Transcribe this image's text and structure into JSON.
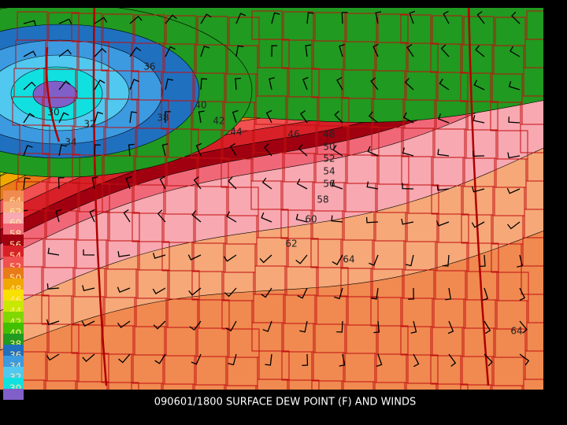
{
  "title": "090601/1800 SURFACE DEW POINT (F) AND WINDS",
  "legend": [
    {
      "label": "64",
      "color": "#f08a50"
    },
    {
      "label": "62",
      "color": "#f6a878"
    },
    {
      "label": "60",
      "color": "#f8a8b0"
    },
    {
      "label": "58",
      "color": "#f06878"
    },
    {
      "label": "56",
      "color": "#a00010"
    },
    {
      "label": "54",
      "color": "#d82028"
    },
    {
      "label": "52",
      "color": "#f05050"
    },
    {
      "label": "50",
      "color": "#e87a18"
    },
    {
      "label": "48",
      "color": "#f0a800"
    },
    {
      "label": "46",
      "color": "#f8e000"
    },
    {
      "label": "44",
      "color": "#c8e800"
    },
    {
      "label": "42",
      "color": "#80d800"
    },
    {
      "label": "40",
      "color": "#40c000"
    },
    {
      "label": "38",
      "color": "#209a20"
    },
    {
      "label": "36",
      "color": "#2070c0"
    },
    {
      "label": "34",
      "color": "#3c9ae0"
    },
    {
      "label": "32",
      "color": "#50c8f0"
    },
    {
      "label": "30",
      "color": "#10e0e0"
    },
    {
      "color": "#8060c8"
    }
  ],
  "contour_labels": [
    "30",
    "32",
    "34",
    "36",
    "38",
    "40",
    "42",
    "44",
    "46",
    "48",
    "50",
    "52",
    "54",
    "56",
    "58",
    "60",
    "62",
    "64",
    "64"
  ]
}
